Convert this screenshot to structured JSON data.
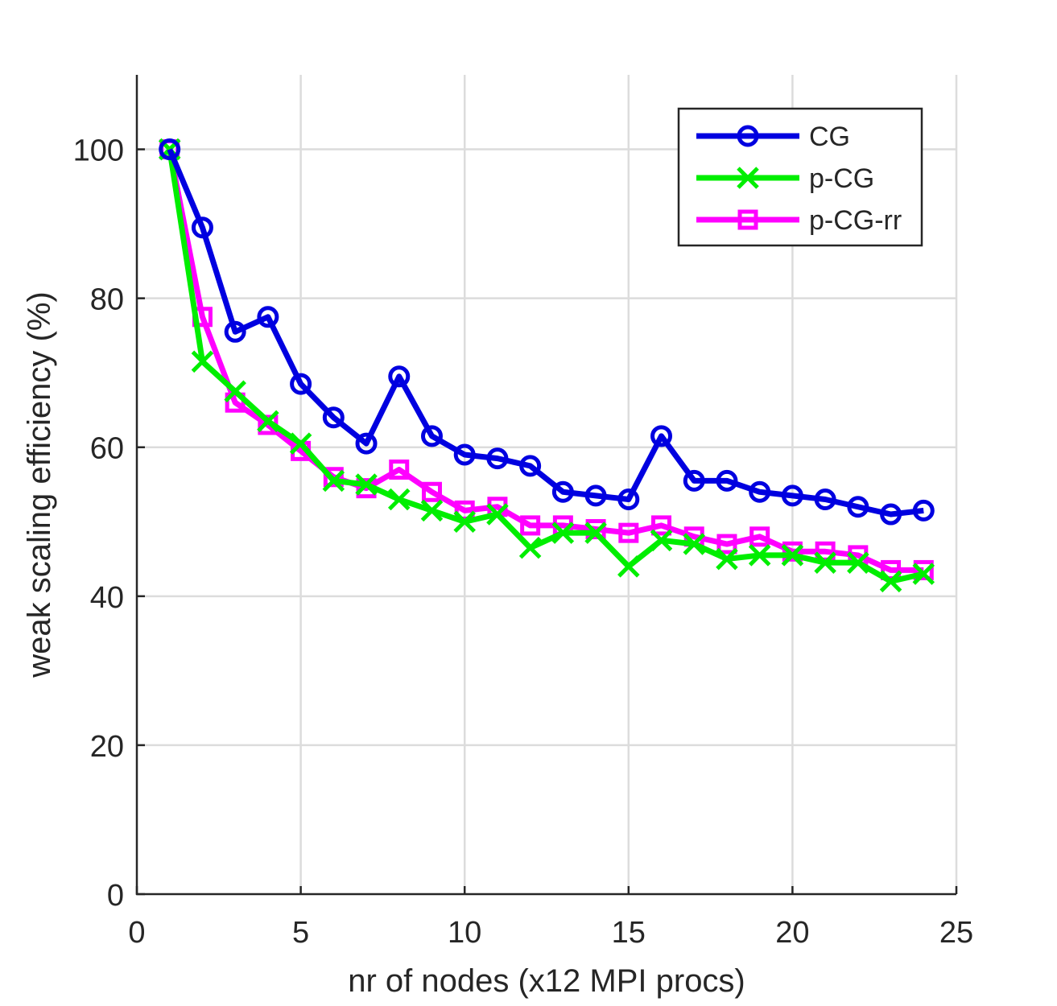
{
  "chart_data": {
    "type": "line",
    "title": "",
    "xlabel": "nr of nodes (x12 MPI procs)",
    "ylabel": "weak scaling efficiency (%)",
    "xlim": [
      0,
      25
    ],
    "ylim": [
      0,
      110
    ],
    "xticks": [
      0,
      5,
      10,
      15,
      20,
      25
    ],
    "yticks": [
      0,
      20,
      40,
      60,
      80,
      100
    ],
    "grid": true,
    "legend_position": "top-right",
    "x": [
      1,
      2,
      3,
      4,
      5,
      6,
      7,
      8,
      9,
      10,
      11,
      12,
      13,
      14,
      15,
      16,
      17,
      18,
      19,
      20,
      21,
      22,
      23,
      24
    ],
    "series": [
      {
        "name": "CG",
        "color": "#0000E0",
        "marker": "circle",
        "values": [
          100,
          89.5,
          75.5,
          77.5,
          68.5,
          64,
          60.5,
          69.5,
          61.5,
          59,
          58.5,
          57.5,
          54,
          53.5,
          53,
          61.5,
          55.5,
          55.5,
          54,
          53.5,
          53,
          52,
          51,
          51.5
        ]
      },
      {
        "name": "p-CG",
        "color": "#00EE00",
        "marker": "x",
        "values": [
          100,
          71.5,
          67.5,
          63.5,
          60.5,
          55.5,
          55,
          53,
          51.5,
          50,
          51,
          46.5,
          48.5,
          48.5,
          44,
          47.5,
          47,
          45,
          45.5,
          45.5,
          44.5,
          44.5,
          42,
          43
        ]
      },
      {
        "name": "p-CG-rr",
        "color": "#FF00FF",
        "marker": "square",
        "values": [
          100,
          77.5,
          66,
          63,
          59.5,
          56,
          54.5,
          57,
          54,
          51.5,
          52,
          49.5,
          49.5,
          49,
          48.5,
          49.5,
          48,
          47,
          48,
          46,
          46,
          45.5,
          43.5,
          43.5
        ]
      }
    ]
  }
}
